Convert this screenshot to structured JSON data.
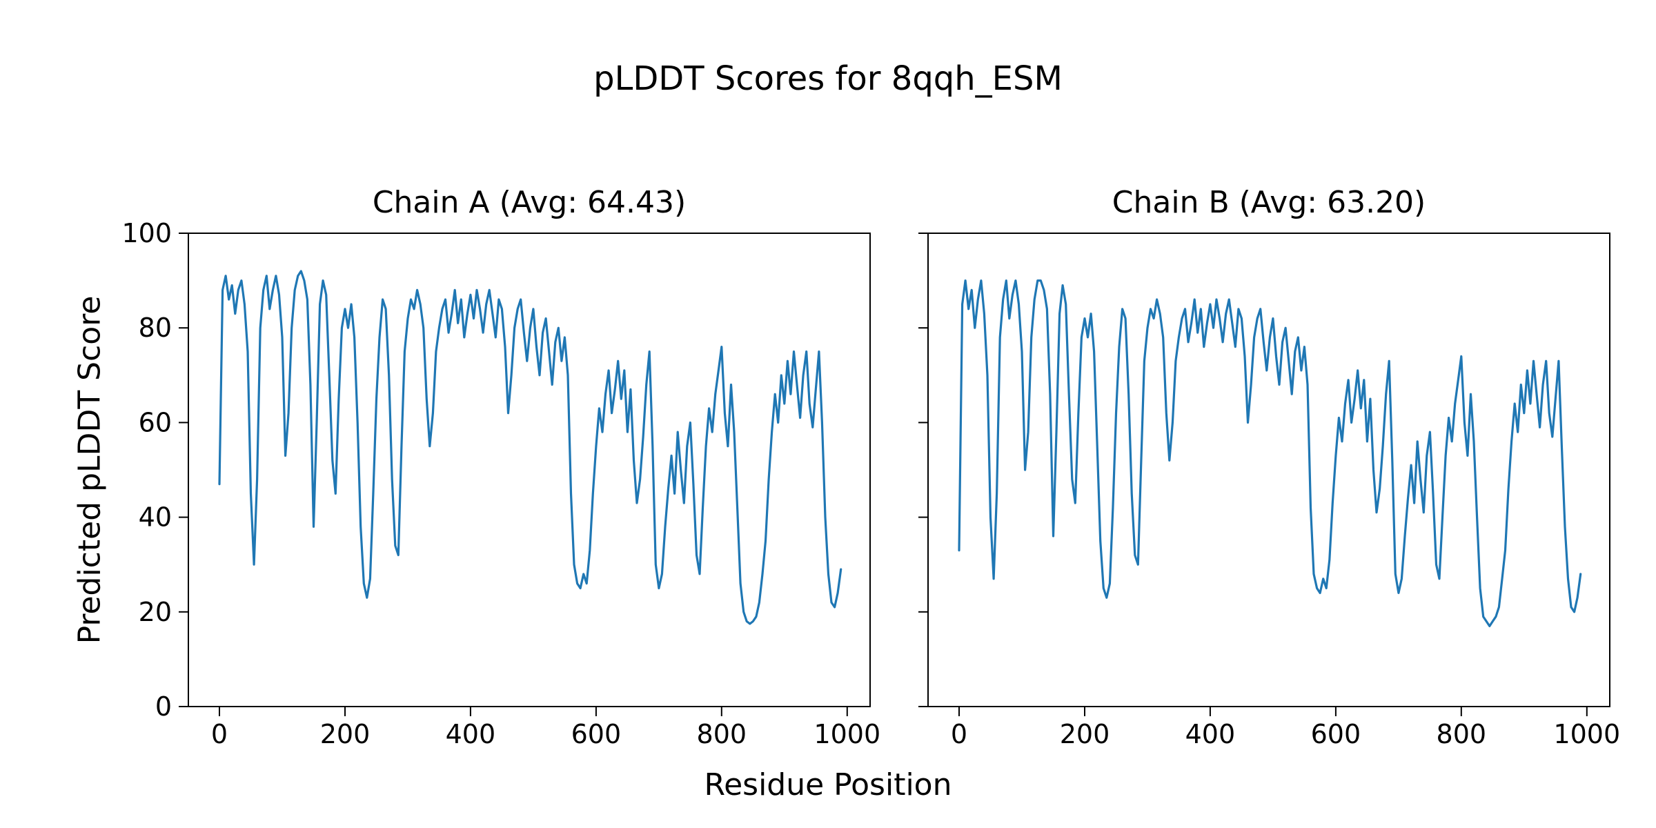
{
  "suptitle": "pLDDT Scores for 8qqh_ESM",
  "chart_data": {
    "type": "line",
    "title": "pLDDT Scores for 8qqh_ESM",
    "xlabel": "Residue Position",
    "ylabel": "Predicted pLDDT Score",
    "xlim": [
      -49.5,
      1036.5
    ],
    "ylim": [
      0,
      100
    ],
    "x_ticks": [
      0,
      200,
      400,
      600,
      800,
      1000
    ],
    "x_tick_labels": [
      "0",
      "200",
      "400",
      "600",
      "800",
      "1000"
    ],
    "y_ticks": [
      0,
      20,
      40,
      60,
      80,
      100
    ],
    "y_tick_labels": [
      "0",
      "20",
      "40",
      "60",
      "80",
      "100"
    ],
    "grid": false,
    "legend": "none",
    "line_color": "#1f77b4",
    "x_start": 0,
    "x_step": 5,
    "series": [
      {
        "name": "Chain A",
        "title": "Chain A (Avg: 64.43)",
        "avg": 64.43,
        "values": [
          47,
          88,
          91,
          86,
          89,
          83,
          88,
          90,
          85,
          75,
          45,
          30,
          48,
          80,
          88,
          91,
          84,
          88,
          91,
          87,
          78,
          53,
          62,
          80,
          88,
          91,
          92,
          90,
          86,
          68,
          38,
          60,
          85,
          90,
          87,
          70,
          52,
          45,
          65,
          80,
          84,
          80,
          85,
          78,
          60,
          38,
          26,
          23,
          27,
          45,
          65,
          78,
          86,
          84,
          70,
          48,
          34,
          32,
          55,
          75,
          82,
          86,
          84,
          88,
          85,
          80,
          65,
          55,
          62,
          75,
          80,
          84,
          86,
          79,
          83,
          88,
          81,
          86,
          78,
          83,
          87,
          82,
          88,
          84,
          79,
          85,
          88,
          83,
          78,
          86,
          84,
          76,
          62,
          70,
          80,
          84,
          86,
          79,
          73,
          80,
          84,
          76,
          70,
          79,
          82,
          75,
          68,
          77,
          80,
          73,
          78,
          70,
          45,
          30,
          26,
          25,
          28,
          26,
          33,
          45,
          55,
          63,
          58,
          66,
          71,
          62,
          67,
          73,
          65,
          71,
          58,
          67,
          52,
          43,
          48,
          57,
          68,
          75,
          55,
          30,
          25,
          28,
          38,
          46,
          53,
          45,
          58,
          50,
          43,
          55,
          60,
          47,
          32,
          28,
          42,
          55,
          63,
          58,
          66,
          71,
          76,
          62,
          55,
          68,
          58,
          42,
          26,
          20,
          18,
          17.5,
          18,
          19,
          22,
          28,
          35,
          48,
          58,
          66,
          60,
          70,
          64,
          73,
          66,
          75,
          68,
          61,
          70,
          75,
          64,
          59,
          67,
          75,
          60,
          40,
          28,
          22,
          21,
          24,
          29
        ]
      },
      {
        "name": "Chain B",
        "title": "Chain B (Avg: 63.20)",
        "avg": 63.2,
        "values": [
          33,
          85,
          90,
          84,
          88,
          80,
          86,
          90,
          83,
          70,
          40,
          27,
          45,
          78,
          86,
          90,
          82,
          87,
          90,
          85,
          75,
          50,
          58,
          78,
          86,
          90,
          90,
          88,
          84,
          66,
          36,
          58,
          83,
          89,
          85,
          66,
          48,
          43,
          62,
          78,
          82,
          78,
          83,
          75,
          55,
          35,
          25,
          23,
          26,
          42,
          62,
          76,
          84,
          82,
          66,
          45,
          32,
          30,
          52,
          73,
          80,
          84,
          82,
          86,
          83,
          78,
          62,
          52,
          60,
          73,
          78,
          82,
          84,
          77,
          81,
          86,
          79,
          84,
          76,
          81,
          85,
          80,
          86,
          82,
          77,
          83,
          86,
          81,
          76,
          84,
          82,
          74,
          60,
          68,
          78,
          82,
          84,
          77,
          71,
          78,
          82,
          74,
          68,
          77,
          80,
          73,
          66,
          75,
          78,
          71,
          76,
          68,
          42,
          28,
          25,
          24,
          27,
          25,
          31,
          43,
          53,
          61,
          56,
          64,
          69,
          60,
          65,
          71,
          63,
          69,
          56,
          65,
          50,
          41,
          46,
          55,
          66,
          73,
          52,
          28,
          24,
          27,
          36,
          44,
          51,
          43,
          56,
          48,
          41,
          53,
          58,
          45,
          30,
          27,
          40,
          53,
          61,
          56,
          64,
          69,
          74,
          60,
          53,
          66,
          56,
          40,
          25,
          19,
          18,
          17,
          18,
          19,
          21,
          27,
          33,
          46,
          56,
          64,
          58,
          68,
          62,
          71,
          64,
          73,
          66,
          59,
          68,
          73,
          62,
          57,
          65,
          73,
          55,
          38,
          27,
          21,
          20,
          23,
          28
        ]
      }
    ]
  }
}
